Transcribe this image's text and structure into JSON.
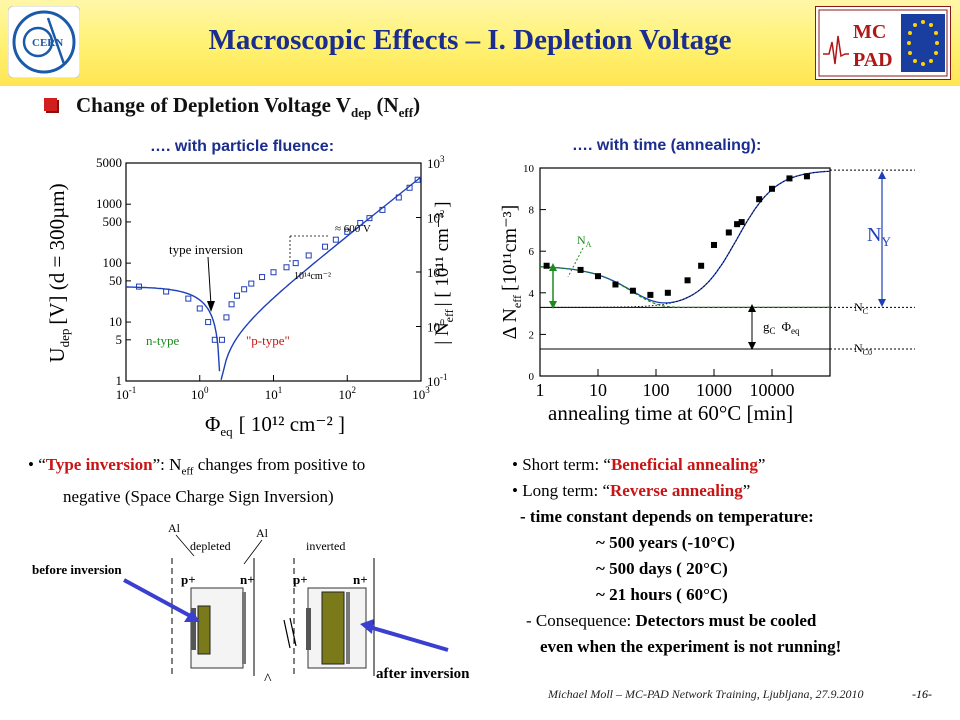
{
  "header": {
    "title": "Macroscopic Effects – I. Depletion Voltage",
    "cern_logo_text": "CERN",
    "mcpad_logo_text_1": "MC",
    "mcpad_logo_text_2": "PAD"
  },
  "subtitle": {
    "main": "Change of Depletion Voltage V",
    "sub1": "dep",
    "mid": " (N",
    "sub2": "eff",
    "end": ")"
  },
  "left_caption": "…. with particle fluence:",
  "right_caption": "…. with time (annealing):",
  "chart_data": [
    {
      "type": "scatter",
      "name": "fluence",
      "xscale": "log",
      "yscale": "log",
      "xlim": [
        0.1,
        1000
      ],
      "ylim": [
        1,
        5000
      ],
      "x_ticks": [
        "10-1",
        "100",
        "101",
        "102",
        "103"
      ],
      "y_ticks_left": [
        "1",
        "5",
        "10",
        "50",
        "100",
        "500",
        "1000",
        "5000"
      ],
      "y_ticks_right": [
        "10-1",
        "100",
        "101",
        "102",
        "103"
      ],
      "xlabel_main": "Φ",
      "xlabel_sub": "eq",
      "xlabel_rest": "[ 10¹² cm⁻² ]",
      "ylabel_left": "U",
      "ylabel_left_sub": "dep",
      "ylabel_left_rest": "[V] (d = 300µm)",
      "ylabel_right": "| N",
      "ylabel_right_sub": "eff",
      "ylabel_right_rest": "| [ 10¹¹ cm⁻³ ]",
      "annotations": {
        "type_inversion": "type inversion",
        "n_type": "n-type",
        "p_type": "\"p-type\"",
        "v600": "≈ 600 V",
        "fluence_label": "10¹⁴cm⁻²"
      },
      "points": [
        {
          "x": 0.15,
          "y": 40
        },
        {
          "x": 0.35,
          "y": 33
        },
        {
          "x": 0.7,
          "y": 25
        },
        {
          "x": 1.0,
          "y": 17
        },
        {
          "x": 1.3,
          "y": 10
        },
        {
          "x": 1.6,
          "y": 5
        },
        {
          "x": 2.0,
          "y": 5
        },
        {
          "x": 2.3,
          "y": 12
        },
        {
          "x": 2.7,
          "y": 20
        },
        {
          "x": 3.2,
          "y": 28
        },
        {
          "x": 4.0,
          "y": 36
        },
        {
          "x": 5.0,
          "y": 45
        },
        {
          "x": 7.0,
          "y": 58
        },
        {
          "x": 10,
          "y": 70
        },
        {
          "x": 15,
          "y": 85
        },
        {
          "x": 20,
          "y": 100
        },
        {
          "x": 30,
          "y": 135
        },
        {
          "x": 50,
          "y": 190
        },
        {
          "x": 70,
          "y": 250
        },
        {
          "x": 100,
          "y": 340
        },
        {
          "x": 150,
          "y": 480
        },
        {
          "x": 200,
          "y": 580
        },
        {
          "x": 300,
          "y": 800
        },
        {
          "x": 500,
          "y": 1300
        },
        {
          "x": 700,
          "y": 1900
        },
        {
          "x": 900,
          "y": 2600
        }
      ]
    },
    {
      "type": "line",
      "name": "annealing",
      "xscale": "log",
      "xlim": [
        1,
        100000
      ],
      "ylim": [
        0,
        10
      ],
      "x_ticks": [
        "1",
        "10",
        "100",
        "1000",
        "10000"
      ],
      "y_ticks": [
        "0",
        "2",
        "4",
        "6",
        "8",
        "10"
      ],
      "xlabel": "annealing time at 60°C [min]",
      "ylabel": "Δ N",
      "ylabel_sub": "eff",
      "ylabel_rest": "[10¹¹cm⁻³]",
      "annotations": {
        "na": "N",
        "na_sub": "A",
        "ny": "N",
        "ny_sub": "Y",
        "nc": "N",
        "nc_sub": "C",
        "nc0": "N",
        "nc0_sub": "C0",
        "gc": "g",
        "gc_sub": "C",
        "phi": "Φ",
        "phi_sub": "eq"
      },
      "levels": {
        "nc": 3.3,
        "nc0": 1.3
      },
      "points": [
        {
          "x": 1.3,
          "y": 5.3
        },
        {
          "x": 5,
          "y": 5.1
        },
        {
          "x": 10,
          "y": 4.8
        },
        {
          "x": 20,
          "y": 4.4
        },
        {
          "x": 40,
          "y": 4.1
        },
        {
          "x": 80,
          "y": 3.9
        },
        {
          "x": 160,
          "y": 4.0
        },
        {
          "x": 350,
          "y": 4.6
        },
        {
          "x": 600,
          "y": 5.3
        },
        {
          "x": 1000,
          "y": 6.3
        },
        {
          "x": 1800,
          "y": 6.9
        },
        {
          "x": 2500,
          "y": 7.3
        },
        {
          "x": 3000,
          "y": 7.4
        },
        {
          "x": 6000,
          "y": 8.5
        },
        {
          "x": 10000,
          "y": 9.0
        },
        {
          "x": 20000,
          "y": 9.5
        },
        {
          "x": 40000,
          "y": 9.6
        }
      ]
    }
  ],
  "left_notes": {
    "bullet": "•",
    "q1": "“",
    "type_inversion": "Type inversion",
    "q2": "”: N",
    "neff_sub": "eff",
    "rest1": " changes from positive to",
    "line2": "negative (Space Charge Sign Inversion)"
  },
  "right_notes": {
    "short_prefix": "• Short term: “",
    "short_red": "Beneficial annealing",
    "short_suffix": "”",
    "long_prefix": "• Long term: “",
    "long_red": "Reverse annealing",
    "long_suffix": "”",
    "time_constant": "- time constant depends on temperature:",
    "t1": "~ 500 years (-10°C)",
    "t2": "~ 500 days  ( 20°C)",
    "t3": "~  21 hours ( 60°C)",
    "consequence_prefix": "- Consequence: ",
    "consequence_bold": "Detectors must be cooled",
    "consequence_line2": "even when the experiment is not running!"
  },
  "diagram": {
    "al_left": "Al",
    "depleted": "depleted",
    "al_right": "Al",
    "inverted": "inverted",
    "p_plus": "p+",
    "n_plus": "n+",
    "before": "before inversion",
    "after": "after inversion",
    "colors": {
      "depleted": "#7a7a1a",
      "arrow": "#3a3fd0"
    }
  },
  "footer": {
    "credit": "Michael Moll – MC-PAD Network Training, Ljubljana, 27.9.2010",
    "page": "-16-"
  },
  "colors": {
    "title": "#1b2d8e",
    "accent_red": "#c81414",
    "plot_blue": "#1f3fb8"
  }
}
